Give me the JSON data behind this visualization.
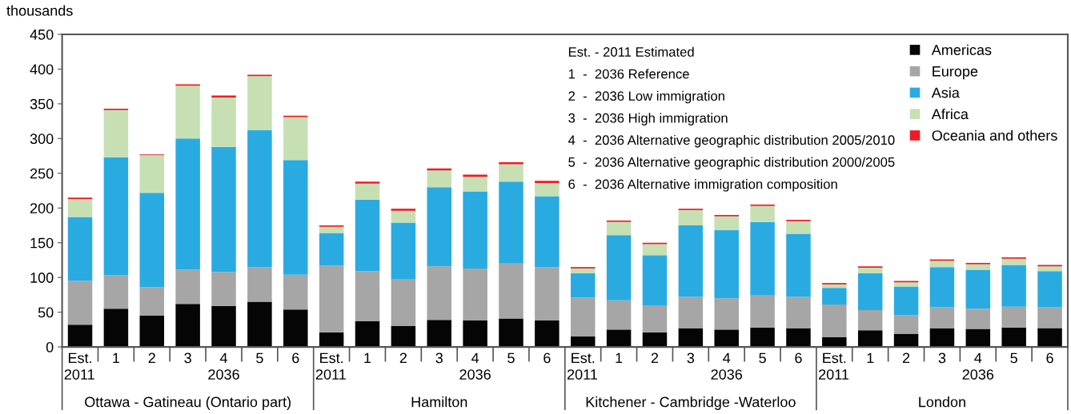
{
  "chart_data": {
    "type": "bar",
    "stacked": true,
    "ylabel": "thousands",
    "categories": [
      "Est.",
      "1",
      "2",
      "3",
      "4",
      "5",
      "6",
      "Est.",
      "1",
      "2",
      "3",
      "4",
      "5",
      "6",
      "Est.",
      "1",
      "2",
      "3",
      "4",
      "5",
      "6",
      "Est.",
      "1",
      "2",
      "3",
      "4",
      "5",
      "6"
    ],
    "series": [
      {
        "name": "Americas",
        "color": "#050505",
        "values": [
          32,
          55,
          45,
          62,
          59,
          65,
          54,
          21,
          37,
          30,
          39,
          38,
          41,
          38,
          15,
          25,
          21,
          27,
          25,
          28,
          27,
          14,
          24,
          19,
          27,
          26,
          28,
          27
        ]
      },
      {
        "name": "Europe",
        "color": "#a6a6a6",
        "values": [
          63,
          48,
          41,
          49,
          49,
          50,
          50,
          96,
          72,
          67,
          77,
          75,
          79,
          77,
          56,
          42,
          39,
          45,
          45,
          46,
          45,
          47,
          29,
          27,
          30,
          29,
          30,
          30
        ]
      },
      {
        "name": "Asia",
        "color": "#29abe2",
        "values": [
          92,
          170,
          136,
          189,
          180,
          197,
          165,
          47,
          103,
          82,
          114,
          111,
          118,
          102,
          35,
          94,
          72,
          103,
          98,
          106,
          91,
          24,
          53,
          41,
          58,
          56,
          60,
          52
        ]
      },
      {
        "name": "Africa",
        "color": "#c6e0b4",
        "values": [
          26,
          68,
          54,
          76,
          71,
          78,
          62,
          9,
          23,
          17,
          24,
          21,
          25,
          19,
          7,
          19,
          16,
          22,
          20,
          23,
          18,
          5,
          8,
          6,
          9,
          8,
          9,
          7
        ]
      },
      {
        "name": "Oceania and others",
        "color": "#ed1c24",
        "values": [
          2,
          2,
          1,
          2,
          3,
          2,
          2,
          2,
          3,
          3,
          3,
          3,
          3,
          3,
          2,
          2,
          2,
          2,
          2,
          2,
          2,
          2,
          2,
          2,
          2,
          2,
          2,
          2
        ]
      }
    ],
    "ylim": [
      0,
      450
    ],
    "yticks": [
      0,
      50,
      100,
      150,
      200,
      250,
      300,
      350,
      400,
      450
    ],
    "legend": "top right",
    "grid": false,
    "annotations": [
      "Est. - 2011 Estimated",
      "1  -  2036 Reference",
      "2  -  2036 Low immigration",
      "3  -  2036 High immigration",
      "4  -  2036 Alternative geographic distribution 2005/2010",
      "5  -  2036 Alternative geographic distribution 2000/2005",
      "6  -  2036 Alternative immigration composition",
      "2011",
      "2036",
      "Ottawa - Gatineau (Ontario part)",
      "2011",
      "2036",
      "Hamilton",
      "2011",
      "2036",
      "Kitchener - Cambridge -Waterloo",
      "2011",
      "2036",
      "London"
    ]
  }
}
